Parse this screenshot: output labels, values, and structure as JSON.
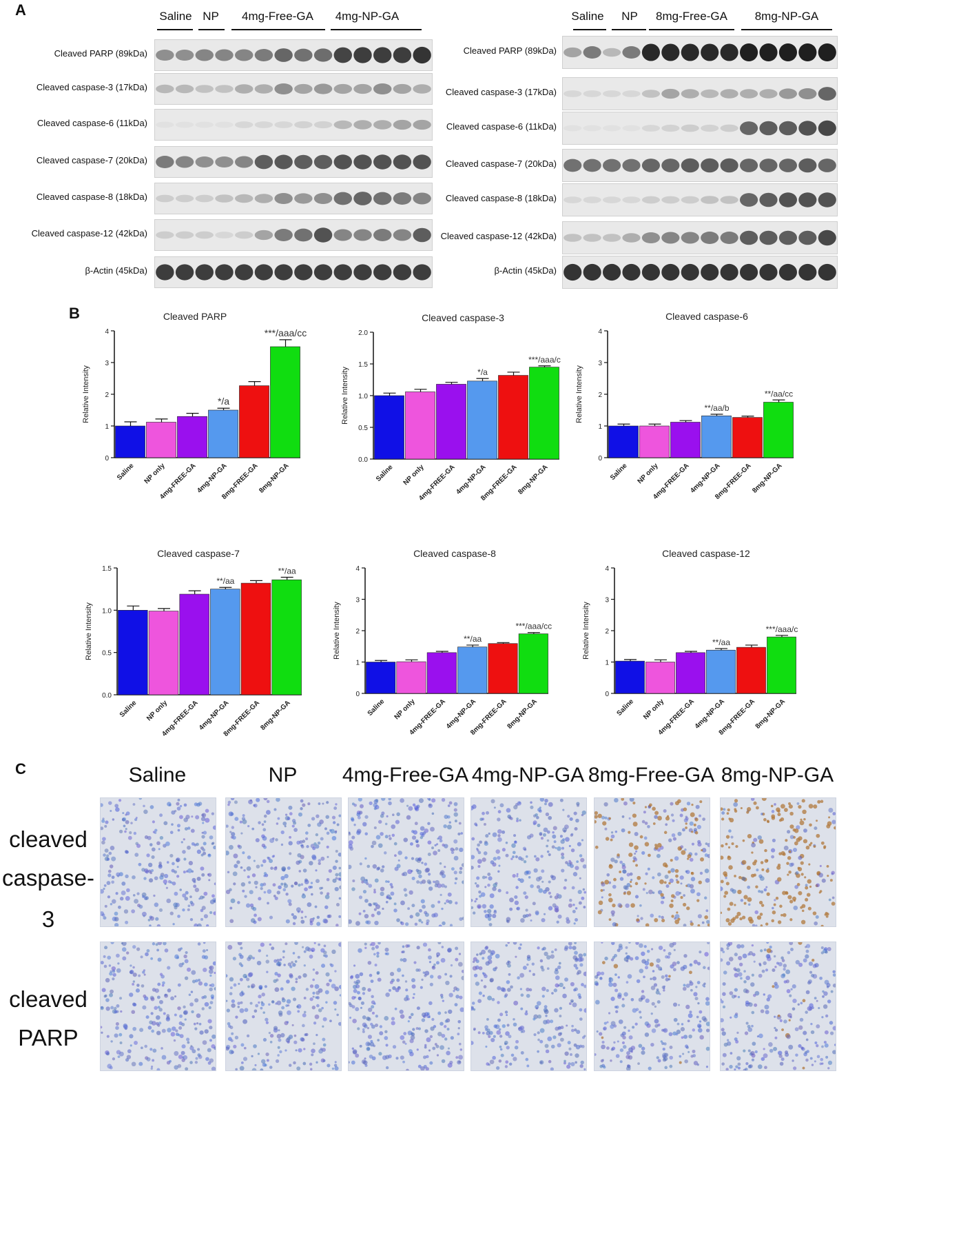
{
  "panels": {
    "a": "A",
    "b": "B",
    "c": "C"
  },
  "blot_left": {
    "groups": [
      "Saline",
      "NP",
      "4mg-Free-GA",
      "4mg-NP-GA"
    ],
    "rows": [
      "Cleaved PARP (89kDa)",
      "Cleaved caspase-3 (17kDa)",
      "Cleaved caspase-6 (11kDa)",
      "Cleaved caspase-7 (20kDa)",
      "Cleaved caspase-8 (18kDa)",
      "Cleaved caspase-12 (42kDa)",
      "β-Actin (45kDa)"
    ]
  },
  "blot_right": {
    "groups": [
      "Saline",
      "NP",
      "8mg-Free-GA",
      "8mg-NP-GA"
    ],
    "rows": [
      "Cleaved PARP (89kDa)",
      "Cleaved caspase-3 (17kDa)",
      "Cleaved caspase-6 (11kDa)",
      "Cleaved caspase-7 (20kDa)",
      "Cleaved caspase-8 (18kDa)",
      "Cleaved caspase-12 (42kDa)",
      "β-Actin (45kDa)"
    ]
  },
  "colors": [
    "#1010e6",
    "#ee55dd",
    "#9a10ee",
    "#5599ee",
    "#ee1010",
    "#10dd10"
  ],
  "chart_data": [
    {
      "type": "bar",
      "title": "Cleaved PARP",
      "ylabel": "Relative Intensity",
      "ylim": [
        0,
        4
      ],
      "yticks": [
        "0",
        "1",
        "2",
        "3",
        "4"
      ],
      "categories": [
        "Saline",
        "NP only",
        "4mg-FREE-GA",
        "4mg-NP-GA",
        "8mg-FREE-GA",
        "8mg-NP-GA"
      ],
      "values": [
        1.0,
        1.12,
        1.3,
        1.5,
        2.27,
        3.5
      ],
      "errors": [
        0.13,
        0.1,
        0.1,
        0.06,
        0.13,
        0.22
      ],
      "annotations": [
        "",
        "",
        "",
        "*/a",
        "",
        "***/aaa/cc"
      ]
    },
    {
      "type": "bar",
      "title": "Cleaved caspase-3",
      "ylabel": "Relative Intensity",
      "ylim": [
        0,
        2
      ],
      "yticks": [
        "0.0",
        "0.5",
        "1.0",
        "1.5",
        "2.0"
      ],
      "categories": [
        "Saline",
        "NP only",
        "4mg-FREE-GA",
        "4mg-NP-GA",
        "8mg-FREE-GA",
        "8mg-NP-GA"
      ],
      "values": [
        1.0,
        1.06,
        1.18,
        1.23,
        1.32,
        1.45
      ],
      "errors": [
        0.04,
        0.04,
        0.03,
        0.04,
        0.05,
        0.02
      ],
      "annotations": [
        "",
        "",
        "",
        "*/a",
        "",
        "***/aaa/c"
      ]
    },
    {
      "type": "bar",
      "title": "Cleaved caspase-6",
      "ylabel": "Relative Intensity",
      "ylim": [
        0,
        4
      ],
      "yticks": [
        "0",
        "1",
        "2",
        "3",
        "4"
      ],
      "categories": [
        "Saline",
        "NP only",
        "4mg-FREE-GA",
        "4mg-NP-GA",
        "8mg-FREE-GA",
        "8mg-NP-GA"
      ],
      "values": [
        1.0,
        1.0,
        1.12,
        1.32,
        1.27,
        1.75
      ],
      "errors": [
        0.06,
        0.06,
        0.05,
        0.05,
        0.04,
        0.07
      ],
      "annotations": [
        "",
        "",
        "",
        "**/aa/b",
        "",
        "**/aa/cc"
      ]
    },
    {
      "type": "bar",
      "title": "Cleaved caspase-7",
      "ylabel": "Relative Intensity",
      "ylim": [
        0,
        1.5
      ],
      "yticks": [
        "0.0",
        "0.5",
        "1.0",
        "1.5"
      ],
      "categories": [
        "Saline",
        "NP only",
        "4mg-FREE-GA",
        "4mg-NP-GA",
        "8mg-FREE-GA",
        "8mg-NP-GA"
      ],
      "values": [
        1.0,
        0.99,
        1.19,
        1.25,
        1.32,
        1.36
      ],
      "errors": [
        0.05,
        0.03,
        0.04,
        0.02,
        0.03,
        0.03
      ],
      "annotations": [
        "",
        "",
        "",
        "**/aa",
        "",
        "**/aa"
      ]
    },
    {
      "type": "bar",
      "title": "Cleaved caspase-8",
      "ylabel": "Relative Intensity",
      "ylim": [
        0,
        4
      ],
      "yticks": [
        "0",
        "1",
        "2",
        "3",
        "4"
      ],
      "categories": [
        "Saline",
        "NP only",
        "4mg-FREE-GA",
        "4mg-NP-GA",
        "8mg-FREE-GA",
        "8mg-NP-GA"
      ],
      "values": [
        1.0,
        1.01,
        1.3,
        1.48,
        1.59,
        1.9
      ],
      "errors": [
        0.05,
        0.06,
        0.04,
        0.06,
        0.03,
        0.04
      ],
      "annotations": [
        "",
        "",
        "",
        "**/aa",
        "",
        "***/aaa/cc"
      ]
    },
    {
      "type": "bar",
      "title": "Cleaved caspase-12",
      "ylabel": "Relative Intensity",
      "ylim": [
        0,
        4
      ],
      "yticks": [
        "0",
        "1",
        "2",
        "3",
        "4"
      ],
      "categories": [
        "Saline",
        "NP only",
        "4mg-FREE-GA",
        "4mg-NP-GA",
        "8mg-FREE-GA",
        "8mg-NP-GA"
      ],
      "values": [
        1.03,
        1.0,
        1.3,
        1.38,
        1.47,
        1.8
      ],
      "errors": [
        0.05,
        0.07,
        0.04,
        0.05,
        0.07,
        0.05
      ],
      "annotations": [
        "",
        "",
        "",
        "**/aa",
        "",
        "***/aaa/c"
      ]
    }
  ],
  "ihc": {
    "columns": [
      "Saline",
      "NP",
      "4mg-Free-GA",
      "4mg-NP-GA",
      "8mg-Free-GA",
      "8mg-NP-GA"
    ],
    "rows": [
      {
        "line1": "cleaved",
        "line2": "caspase-3",
        "brown_level": [
          0,
          0,
          0,
          0,
          0.45,
          0.75
        ]
      },
      {
        "line1": "cleaved",
        "line2": "PARP",
        "brown_level": [
          0,
          0,
          0,
          0,
          0.05,
          0.05
        ]
      }
    ]
  }
}
